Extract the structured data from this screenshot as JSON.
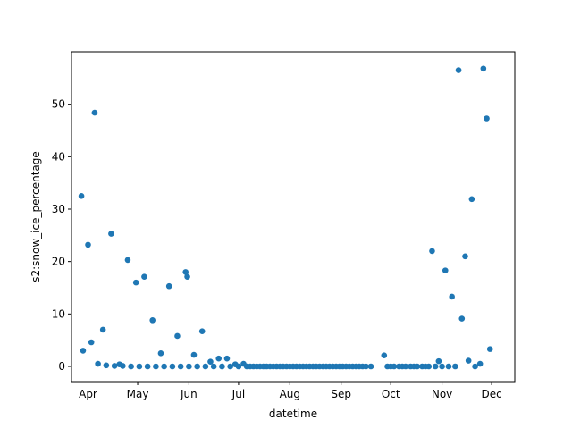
{
  "chart_data": {
    "type": "scatter",
    "xlabel": "datetime",
    "ylabel": "s2:snow_ice_percentage",
    "x_unit": "date",
    "xlim": [
      "2020-03-22",
      "2020-12-15"
    ],
    "ylim": [
      -2.9,
      60.0
    ],
    "grid": false,
    "marker_color": "#1f77b4",
    "x_ticks": [
      {
        "date": "2020-04-01",
        "label": "Apr"
      },
      {
        "date": "2020-05-01",
        "label": "May"
      },
      {
        "date": "2020-06-01",
        "label": "Jun"
      },
      {
        "date": "2020-07-01",
        "label": "Jul"
      },
      {
        "date": "2020-08-01",
        "label": "Aug"
      },
      {
        "date": "2020-09-01",
        "label": "Sep"
      },
      {
        "date": "2020-10-01",
        "label": "Oct"
      },
      {
        "date": "2020-11-01",
        "label": "Nov"
      },
      {
        "date": "2020-12-01",
        "label": "Dec"
      }
    ],
    "y_ticks": [
      0,
      10,
      20,
      30,
      40,
      50
    ],
    "points": [
      [
        "2020-03-28",
        32.5
      ],
      [
        "2020-03-29",
        3.0
      ],
      [
        "2020-04-01",
        23.2
      ],
      [
        "2020-04-03",
        4.6
      ],
      [
        "2020-04-05",
        48.4
      ],
      [
        "2020-04-07",
        0.5
      ],
      [
        "2020-04-10",
        7.0
      ],
      [
        "2020-04-12",
        0.2
      ],
      [
        "2020-04-15",
        25.3
      ],
      [
        "2020-04-17",
        0.1
      ],
      [
        "2020-04-20",
        0.4
      ],
      [
        "2020-04-22",
        0.1
      ],
      [
        "2020-04-25",
        20.3
      ],
      [
        "2020-04-27",
        0.0
      ],
      [
        "2020-04-30",
        16.0
      ],
      [
        "2020-05-02",
        0.0
      ],
      [
        "2020-05-05",
        17.1
      ],
      [
        "2020-05-07",
        0.0
      ],
      [
        "2020-05-10",
        8.8
      ],
      [
        "2020-05-12",
        0.0
      ],
      [
        "2020-05-15",
        2.5
      ],
      [
        "2020-05-17",
        0.0
      ],
      [
        "2020-05-20",
        15.3
      ],
      [
        "2020-05-22",
        0.0
      ],
      [
        "2020-05-25",
        5.8
      ],
      [
        "2020-05-27",
        0.0
      ],
      [
        "2020-05-30",
        18.0
      ],
      [
        "2020-05-31",
        17.1
      ],
      [
        "2020-06-01",
        0.0
      ],
      [
        "2020-06-04",
        2.2
      ],
      [
        "2020-06-06",
        0.0
      ],
      [
        "2020-06-09",
        6.7
      ],
      [
        "2020-06-11",
        0.0
      ],
      [
        "2020-06-14",
        0.9
      ],
      [
        "2020-06-16",
        0.0
      ],
      [
        "2020-06-19",
        1.5
      ],
      [
        "2020-06-21",
        0.0
      ],
      [
        "2020-06-24",
        1.5
      ],
      [
        "2020-06-26",
        0.0
      ],
      [
        "2020-06-29",
        0.4
      ],
      [
        "2020-07-01",
        0.0
      ],
      [
        "2020-07-04",
        0.5
      ],
      [
        "2020-07-06",
        0.0
      ],
      [
        "2020-07-08",
        0.0
      ],
      [
        "2020-07-10",
        0.0
      ],
      [
        "2020-07-12",
        0.0
      ],
      [
        "2020-07-14",
        0.0
      ],
      [
        "2020-07-16",
        0.0
      ],
      [
        "2020-07-18",
        0.0
      ],
      [
        "2020-07-20",
        0.0
      ],
      [
        "2020-07-22",
        0.0
      ],
      [
        "2020-07-24",
        0.0
      ],
      [
        "2020-07-26",
        0.0
      ],
      [
        "2020-07-28",
        0.0
      ],
      [
        "2020-07-30",
        0.0
      ],
      [
        "2020-08-01",
        0.0
      ],
      [
        "2020-08-03",
        0.0
      ],
      [
        "2020-08-05",
        0.0
      ],
      [
        "2020-08-07",
        0.0
      ],
      [
        "2020-08-09",
        0.0
      ],
      [
        "2020-08-11",
        0.0
      ],
      [
        "2020-08-13",
        0.0
      ],
      [
        "2020-08-15",
        0.0
      ],
      [
        "2020-08-17",
        0.0
      ],
      [
        "2020-08-19",
        0.0
      ],
      [
        "2020-08-21",
        0.0
      ],
      [
        "2020-08-23",
        0.0
      ],
      [
        "2020-08-25",
        0.0
      ],
      [
        "2020-08-27",
        0.0
      ],
      [
        "2020-08-29",
        0.0
      ],
      [
        "2020-08-31",
        0.0
      ],
      [
        "2020-09-02",
        0.0
      ],
      [
        "2020-09-04",
        0.0
      ],
      [
        "2020-09-06",
        0.0
      ],
      [
        "2020-09-08",
        0.0
      ],
      [
        "2020-09-10",
        0.0
      ],
      [
        "2020-09-12",
        0.0
      ],
      [
        "2020-09-14",
        0.0
      ],
      [
        "2020-09-16",
        0.0
      ],
      [
        "2020-09-19",
        0.0
      ],
      [
        "2020-09-27",
        2.1
      ],
      [
        "2020-09-29",
        0.0
      ],
      [
        "2020-10-01",
        0.0
      ],
      [
        "2020-10-03",
        0.0
      ],
      [
        "2020-10-06",
        0.0
      ],
      [
        "2020-10-08",
        0.0
      ],
      [
        "2020-10-10",
        0.0
      ],
      [
        "2020-10-13",
        0.0
      ],
      [
        "2020-10-15",
        0.0
      ],
      [
        "2020-10-17",
        0.0
      ],
      [
        "2020-10-20",
        0.0
      ],
      [
        "2020-10-22",
        0.0
      ],
      [
        "2020-10-24",
        0.0
      ],
      [
        "2020-10-26",
        22.0
      ],
      [
        "2020-10-28",
        0.0
      ],
      [
        "2020-10-30",
        1.0
      ],
      [
        "2020-11-01",
        0.0
      ],
      [
        "2020-11-03",
        18.3
      ],
      [
        "2020-11-05",
        0.0
      ],
      [
        "2020-11-07",
        13.3
      ],
      [
        "2020-11-09",
        0.0
      ],
      [
        "2020-11-11",
        56.5
      ],
      [
        "2020-11-13",
        9.1
      ],
      [
        "2020-11-15",
        21.0
      ],
      [
        "2020-11-17",
        1.1
      ],
      [
        "2020-11-19",
        31.9
      ],
      [
        "2020-11-21",
        0.0
      ],
      [
        "2020-11-24",
        0.5
      ],
      [
        "2020-11-26",
        56.8
      ],
      [
        "2020-11-28",
        47.3
      ],
      [
        "2020-11-30",
        3.3
      ]
    ]
  }
}
